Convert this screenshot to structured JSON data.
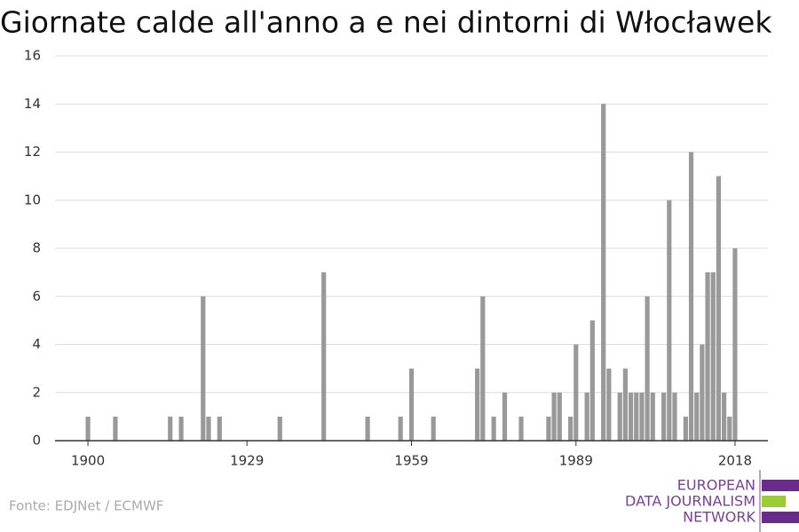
{
  "chart_data": {
    "type": "bar",
    "title": "Giornate calde all'anno a e nei dintorni di Włocławek",
    "x": [
      1900,
      1901,
      1902,
      1903,
      1904,
      1905,
      1906,
      1907,
      1908,
      1909,
      1910,
      1911,
      1912,
      1913,
      1914,
      1915,
      1916,
      1917,
      1918,
      1919,
      1920,
      1921,
      1922,
      1923,
      1924,
      1925,
      1926,
      1927,
      1928,
      1929,
      1930,
      1931,
      1932,
      1933,
      1934,
      1935,
      1936,
      1937,
      1938,
      1939,
      1940,
      1941,
      1942,
      1943,
      1944,
      1945,
      1946,
      1947,
      1948,
      1949,
      1950,
      1951,
      1952,
      1953,
      1954,
      1955,
      1956,
      1957,
      1958,
      1959,
      1960,
      1961,
      1962,
      1963,
      1964,
      1965,
      1966,
      1967,
      1968,
      1969,
      1970,
      1971,
      1972,
      1973,
      1974,
      1975,
      1976,
      1977,
      1978,
      1979,
      1980,
      1981,
      1982,
      1983,
      1984,
      1985,
      1986,
      1987,
      1988,
      1989,
      1990,
      1991,
      1992,
      1993,
      1994,
      1995,
      1996,
      1997,
      1998,
      1999,
      2000,
      2001,
      2002,
      2003,
      2004,
      2005,
      2006,
      2007,
      2008,
      2009,
      2010,
      2011,
      2012,
      2013,
      2014,
      2015,
      2016,
      2017,
      2018
    ],
    "values": [
      1,
      0,
      0,
      0,
      0,
      1,
      0,
      0,
      0,
      0,
      0,
      0,
      0,
      0,
      0,
      1,
      0,
      1,
      0,
      0,
      0,
      6,
      1,
      0,
      1,
      0,
      0,
      0,
      0,
      0,
      0,
      0,
      0,
      0,
      0,
      1,
      0,
      0,
      0,
      0,
      0,
      0,
      0,
      7,
      0,
      0,
      0,
      0,
      0,
      0,
      0,
      1,
      0,
      0,
      0,
      0,
      0,
      1,
      0,
      3,
      0,
      0,
      0,
      1,
      0,
      0,
      0,
      0,
      0,
      0,
      0,
      3,
      6,
      0,
      1,
      0,
      2,
      0,
      0,
      1,
      0,
      0,
      0,
      0,
      1,
      2,
      2,
      0,
      1,
      4,
      0,
      2,
      5,
      0,
      14,
      3,
      0,
      2,
      3,
      2,
      2,
      2,
      6,
      2,
      0,
      2,
      10,
      2,
      0,
      1,
      12,
      2,
      4,
      7,
      7,
      11,
      2,
      1,
      8
    ],
    "color": "#999999",
    "xlim": [
      1894,
      2024
    ],
    "xticks": [
      1900,
      1929,
      1959,
      1989,
      2018
    ],
    "ylim": [
      0,
      16
    ],
    "yticks": [
      0,
      2,
      4,
      6,
      8,
      10,
      12,
      14,
      16
    ],
    "grid": true,
    "source": "Fonte: EDJNet / ECMWF",
    "logo": [
      "EUROPEAN",
      "DATA JOURNALISM",
      "NETWORK"
    ]
  }
}
